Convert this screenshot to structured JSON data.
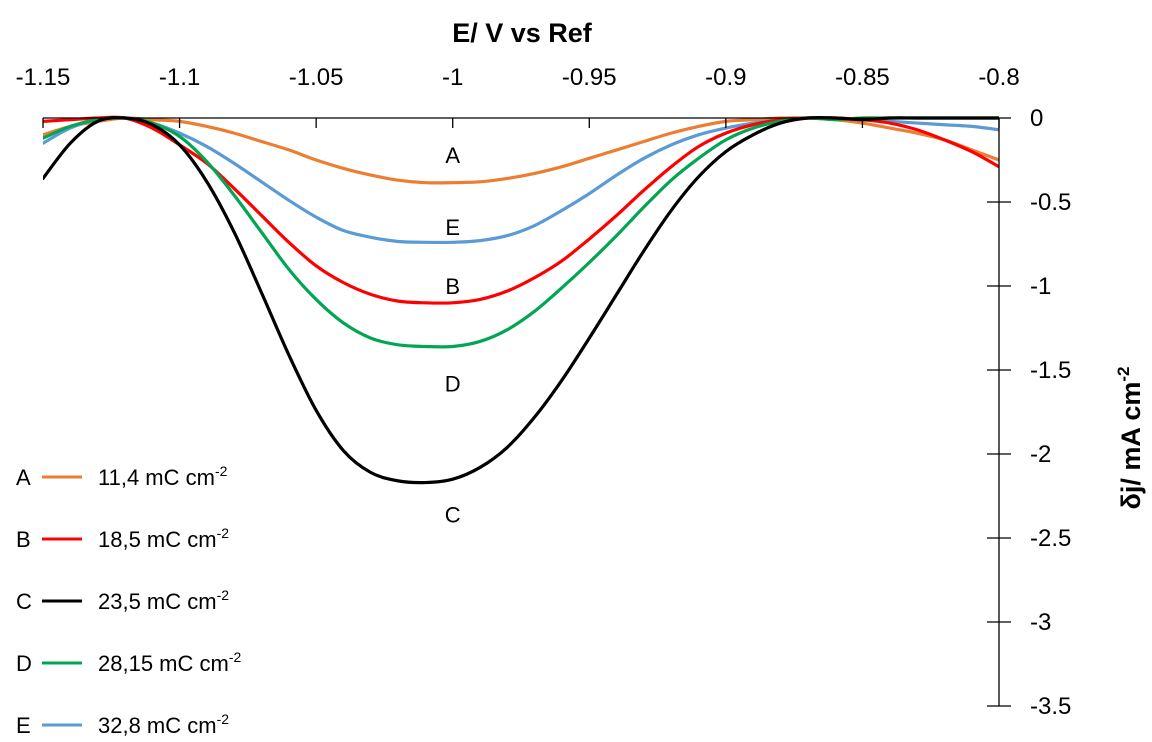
{
  "chart_data": {
    "type": "line",
    "xlabel": "E/ V vs Ref",
    "ylabel": "δj/ mA cm",
    "ylabel_sup": "-2",
    "xlim": [
      -1.15,
      -0.8
    ],
    "ylim": [
      -3.5,
      0
    ],
    "x_ticks": [
      -1.15,
      -1.1,
      -1.05,
      -1,
      -0.95,
      -0.9,
      -0.85,
      -0.8
    ],
    "x_tick_labels": [
      "-1.15",
      "-1.1",
      "-1.05",
      "-1",
      "-0.95",
      "-0.9",
      "-0.85",
      "-0.8"
    ],
    "y_ticks": [
      0,
      -0.5,
      -1,
      -1.5,
      -2,
      -2.5,
      -3,
      -3.5
    ],
    "y_tick_labels": [
      "0",
      "-0.5",
      "-1",
      "-1.5",
      "-2",
      "-2.5",
      "-3",
      "-3.5"
    ],
    "x_axis_position": "top",
    "y_axis_position": "right",
    "grid": false,
    "legend_position": "bottom-left",
    "series": [
      {
        "name": "A",
        "label": "11,4 mC cm",
        "label_sup": "-2",
        "color": "#ED7D31",
        "x": [
          -1.15,
          -1.14,
          -1.13,
          -1.12,
          -1.11,
          -1.1,
          -1.09,
          -1.08,
          -1.07,
          -1.06,
          -1.05,
          -1.04,
          -1.03,
          -1.02,
          -1.01,
          -1.0,
          -0.99,
          -0.98,
          -0.97,
          -0.96,
          -0.95,
          -0.94,
          -0.93,
          -0.92,
          -0.91,
          -0.9,
          -0.89,
          -0.88,
          -0.87,
          -0.86,
          -0.85,
          -0.84,
          -0.83,
          -0.82,
          -0.81,
          -0.8
        ],
        "y": [
          -0.1,
          -0.05,
          -0.02,
          0.0,
          -0.01,
          -0.02,
          -0.05,
          -0.09,
          -0.14,
          -0.19,
          -0.25,
          -0.3,
          -0.34,
          -0.37,
          -0.385,
          -0.385,
          -0.38,
          -0.36,
          -0.33,
          -0.29,
          -0.24,
          -0.19,
          -0.14,
          -0.09,
          -0.05,
          -0.02,
          -0.01,
          0.0,
          0.0,
          -0.01,
          -0.03,
          -0.06,
          -0.09,
          -0.13,
          -0.19,
          -0.25
        ]
      },
      {
        "name": "B",
        "label": "18,5 mC cm",
        "label_sup": "-2",
        "color": "#FF0000",
        "x": [
          -1.15,
          -1.14,
          -1.13,
          -1.12,
          -1.11,
          -1.1,
          -1.09,
          -1.08,
          -1.07,
          -1.06,
          -1.05,
          -1.04,
          -1.03,
          -1.02,
          -1.01,
          -1.0,
          -0.99,
          -0.98,
          -0.97,
          -0.96,
          -0.95,
          -0.94,
          -0.93,
          -0.92,
          -0.91,
          -0.9,
          -0.89,
          -0.88,
          -0.87,
          -0.86,
          -0.85,
          -0.84,
          -0.83,
          -0.82,
          -0.81,
          -0.8
        ],
        "y": [
          -0.02,
          -0.01,
          0.0,
          0.0,
          -0.06,
          -0.16,
          -0.27,
          -0.42,
          -0.58,
          -0.74,
          -0.88,
          -0.98,
          -1.05,
          -1.09,
          -1.1,
          -1.1,
          -1.08,
          -1.03,
          -0.95,
          -0.85,
          -0.72,
          -0.58,
          -0.43,
          -0.29,
          -0.17,
          -0.09,
          -0.04,
          -0.01,
          0.0,
          0.0,
          -0.01,
          -0.03,
          -0.07,
          -0.13,
          -0.2,
          -0.29
        ]
      },
      {
        "name": "C",
        "label": "23,5 mC cm",
        "label_sup": "-2",
        "color": "#000000",
        "x": [
          -1.15,
          -1.14,
          -1.13,
          -1.12,
          -1.11,
          -1.1,
          -1.09,
          -1.08,
          -1.07,
          -1.06,
          -1.05,
          -1.04,
          -1.03,
          -1.02,
          -1.01,
          -1.0,
          -0.99,
          -0.98,
          -0.97,
          -0.96,
          -0.95,
          -0.94,
          -0.93,
          -0.92,
          -0.91,
          -0.9,
          -0.89,
          -0.88,
          -0.87,
          -0.86,
          -0.85,
          -0.84,
          -0.83,
          -0.82,
          -0.81,
          -0.8
        ],
        "y": [
          -0.36,
          -0.15,
          -0.02,
          0.0,
          -0.04,
          -0.16,
          -0.38,
          -0.68,
          -1.04,
          -1.41,
          -1.74,
          -1.98,
          -2.11,
          -2.16,
          -2.17,
          -2.15,
          -2.08,
          -1.96,
          -1.78,
          -1.56,
          -1.31,
          -1.05,
          -0.79,
          -0.55,
          -0.35,
          -0.2,
          -0.1,
          -0.03,
          0.0,
          0.0,
          -0.01,
          0.0,
          0.0,
          0.0,
          0.0,
          0.0
        ]
      },
      {
        "name": "D",
        "label": "28,15 mC cm",
        "label_sup": "-2",
        "color": "#00A651",
        "x": [
          -1.15,
          -1.14,
          -1.13,
          -1.12,
          -1.11,
          -1.1,
          -1.09,
          -1.08,
          -1.07,
          -1.06,
          -1.05,
          -1.04,
          -1.03,
          -1.02,
          -1.01,
          -1.0,
          -0.99,
          -0.98,
          -0.97,
          -0.96,
          -0.95,
          -0.94,
          -0.93,
          -0.92,
          -0.91,
          -0.9,
          -0.89,
          -0.88,
          -0.87,
          -0.86,
          -0.85,
          -0.84,
          -0.83,
          -0.82,
          -0.81,
          -0.8
        ],
        "y": [
          -0.12,
          -0.05,
          -0.01,
          0.0,
          -0.03,
          -0.11,
          -0.26,
          -0.46,
          -0.68,
          -0.9,
          -1.08,
          -1.22,
          -1.31,
          -1.35,
          -1.36,
          -1.36,
          -1.33,
          -1.26,
          -1.15,
          -1.01,
          -0.86,
          -0.7,
          -0.53,
          -0.37,
          -0.24,
          -0.13,
          -0.06,
          -0.02,
          0.0,
          -0.01,
          0.0,
          0.0,
          0.0,
          0.0,
          0.0,
          0.0
        ]
      },
      {
        "name": "E",
        "label": "32,8 mC cm",
        "label_sup": "-2",
        "color": "#5B9BD5",
        "x": [
          -1.15,
          -1.14,
          -1.13,
          -1.12,
          -1.11,
          -1.1,
          -1.09,
          -1.08,
          -1.07,
          -1.06,
          -1.05,
          -1.04,
          -1.03,
          -1.02,
          -1.01,
          -1.0,
          -0.99,
          -0.98,
          -0.97,
          -0.96,
          -0.95,
          -0.94,
          -0.93,
          -0.92,
          -0.91,
          -0.9,
          -0.89,
          -0.88,
          -0.87,
          -0.86,
          -0.85,
          -0.84,
          -0.83,
          -0.82,
          -0.81,
          -0.8
        ],
        "y": [
          -0.15,
          -0.06,
          -0.01,
          0.0,
          -0.03,
          -0.09,
          -0.17,
          -0.27,
          -0.38,
          -0.49,
          -0.59,
          -0.67,
          -0.71,
          -0.735,
          -0.74,
          -0.74,
          -0.73,
          -0.7,
          -0.64,
          -0.55,
          -0.45,
          -0.34,
          -0.24,
          -0.16,
          -0.1,
          -0.06,
          -0.03,
          -0.01,
          0.0,
          0.0,
          -0.01,
          -0.02,
          -0.03,
          -0.04,
          -0.05,
          -0.07
        ]
      }
    ],
    "annotations": [
      {
        "text": "A",
        "x": -1.0,
        "y": -0.22
      },
      {
        "text": "E",
        "x": -1.0,
        "y": -0.65
      },
      {
        "text": "B",
        "x": -1.0,
        "y": -1.0
      },
      {
        "text": "D",
        "x": -1.0,
        "y": -1.58
      },
      {
        "text": "C",
        "x": -1.0,
        "y": -2.36
      }
    ]
  }
}
